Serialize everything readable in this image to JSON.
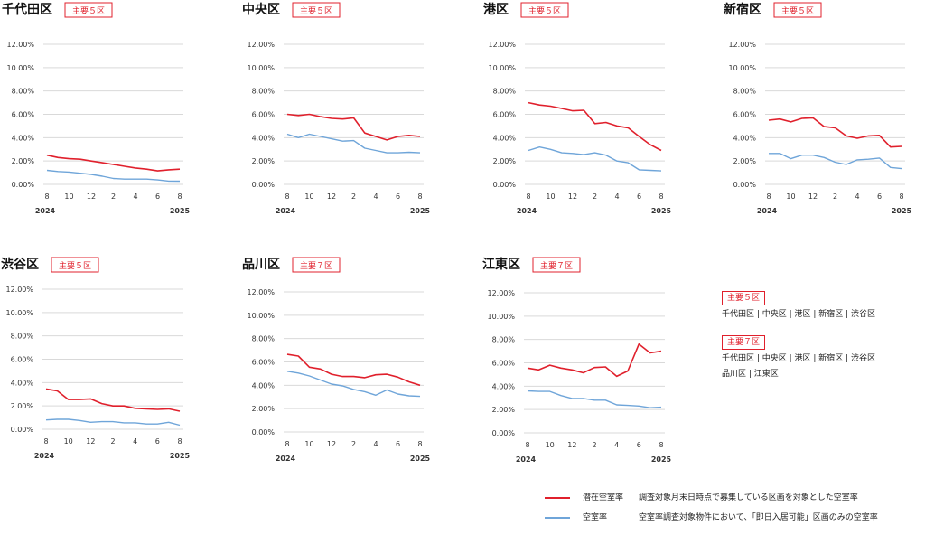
{
  "colors": {
    "latent": "#e0202c",
    "vacancy": "#6fa5d9",
    "grid": "#d9d9d9",
    "tick": "#333333",
    "badge": "#e0202c"
  },
  "legend": [
    {
      "key": "latent",
      "name": "潜在空室率",
      "description": "調査対象月末日時点で募集している区画を対象とした空室率"
    },
    {
      "key": "vacancy",
      "name": "空室率",
      "description": "空室率調査対象物件において、「即日入居可能」区画のみの空室率"
    }
  ],
  "info_boxes": [
    {
      "badge": "主要５区",
      "lines": [
        "千代田区 | 中央区 | 港区 | 新宿区 | 渋谷区"
      ]
    },
    {
      "badge": "主要７区",
      "lines": [
        "千代田区 | 中央区 | 港区 | 新宿区 | 渋谷区",
        "品川区 | 江東区"
      ]
    }
  ],
  "chart_data": [
    {
      "type": "line",
      "title": "千代田区",
      "badge": "主要５区",
      "x_ticks": [
        "8",
        "10",
        "12",
        "2",
        "4",
        "6",
        "8"
      ],
      "x_year_labels": [
        "2024",
        "2025"
      ],
      "y_ticks": [
        "0.00%",
        "2.00%",
        "4.00%",
        "6.00%",
        "8.00%",
        "10.00%",
        "12.00%"
      ],
      "ylim": [
        0,
        12
      ],
      "grid": true,
      "series": [
        {
          "name": "潜在空室率",
          "values": [
            2.5,
            2.3,
            2.2,
            2.15,
            2.0,
            1.85,
            1.7,
            1.55,
            1.4,
            1.3,
            1.15,
            1.25,
            1.3
          ]
        },
        {
          "name": "空室率",
          "values": [
            1.2,
            1.1,
            1.05,
            0.95,
            0.85,
            0.7,
            0.5,
            0.45,
            0.45,
            0.45,
            0.38,
            0.28,
            0.27
          ]
        }
      ]
    },
    {
      "type": "line",
      "title": "中央区",
      "badge": "主要５区",
      "x_ticks": [
        "8",
        "10",
        "12",
        "2",
        "4",
        "6",
        "8"
      ],
      "x_year_labels": [
        "2024",
        "2025"
      ],
      "y_ticks": [
        "0.00%",
        "2.00%",
        "4.00%",
        "6.00%",
        "8.00%",
        "10.00%",
        "12.00%"
      ],
      "ylim": [
        0,
        12
      ],
      "grid": true,
      "series": [
        {
          "name": "潜在空室率",
          "values": [
            6.0,
            5.9,
            6.0,
            5.8,
            5.65,
            5.6,
            5.7,
            4.4,
            4.1,
            3.8,
            4.1,
            4.2,
            4.1
          ]
        },
        {
          "name": "空室率",
          "values": [
            4.3,
            4.0,
            4.3,
            4.1,
            3.9,
            3.7,
            3.75,
            3.1,
            2.9,
            2.7,
            2.7,
            2.75,
            2.7
          ]
        }
      ]
    },
    {
      "type": "line",
      "title": "港区",
      "badge": "主要５区",
      "x_ticks": [
        "8",
        "10",
        "12",
        "2",
        "4",
        "6",
        "8"
      ],
      "x_year_labels": [
        "2024",
        "2025"
      ],
      "y_ticks": [
        "0.00%",
        "2.00%",
        "4.00%",
        "6.00%",
        "8.00%",
        "10.00%",
        "12.00%"
      ],
      "ylim": [
        0,
        12
      ],
      "grid": true,
      "series": [
        {
          "name": "潜在空室率",
          "values": [
            7.0,
            6.8,
            6.7,
            6.5,
            6.3,
            6.35,
            5.2,
            5.3,
            5.0,
            4.85,
            4.1,
            3.4,
            2.9
          ]
        },
        {
          "name": "空室率",
          "values": [
            2.9,
            3.2,
            3.0,
            2.7,
            2.65,
            2.55,
            2.7,
            2.5,
            2.0,
            1.85,
            1.25,
            1.2,
            1.15
          ]
        }
      ]
    },
    {
      "type": "line",
      "title": "新宿区",
      "badge": "主要５区",
      "x_ticks": [
        "8",
        "10",
        "12",
        "2",
        "4",
        "6",
        "8"
      ],
      "x_year_labels": [
        "2024",
        "2025"
      ],
      "y_ticks": [
        "0.00%",
        "2.00%",
        "4.00%",
        "6.00%",
        "8.00%",
        "10.00%",
        "12.00%"
      ],
      "ylim": [
        0,
        12
      ],
      "grid": true,
      "series": [
        {
          "name": "潜在空室率",
          "values": [
            5.5,
            5.6,
            5.35,
            5.65,
            5.7,
            4.95,
            4.85,
            4.15,
            3.95,
            4.15,
            4.2,
            3.2,
            3.25
          ]
        },
        {
          "name": "空室率",
          "values": [
            2.65,
            2.65,
            2.2,
            2.5,
            2.5,
            2.3,
            1.9,
            1.7,
            2.1,
            2.15,
            2.25,
            1.45,
            1.35
          ]
        }
      ]
    },
    {
      "type": "line",
      "title": "渋谷区",
      "badge": "主要５区",
      "x_ticks": [
        "8",
        "10",
        "12",
        "2",
        "4",
        "6",
        "8"
      ],
      "x_year_labels": [
        "2024",
        "2025"
      ],
      "y_ticks": [
        "0.00%",
        "2.00%",
        "4.00%",
        "6.00%",
        "8.00%",
        "10.00%",
        "12.00%"
      ],
      "ylim": [
        0,
        12
      ],
      "grid": true,
      "series": [
        {
          "name": "潜在空室率",
          "values": [
            3.45,
            3.3,
            2.55,
            2.55,
            2.6,
            2.2,
            2.0,
            2.0,
            1.8,
            1.75,
            1.7,
            1.75,
            1.55
          ]
        },
        {
          "name": "空室率",
          "values": [
            0.8,
            0.85,
            0.85,
            0.75,
            0.6,
            0.65,
            0.65,
            0.55,
            0.55,
            0.45,
            0.45,
            0.6,
            0.35
          ]
        }
      ]
    },
    {
      "type": "line",
      "title": "品川区",
      "badge": "主要７区",
      "x_ticks": [
        "8",
        "10",
        "12",
        "2",
        "4",
        "6",
        "8"
      ],
      "x_year_labels": [
        "2024",
        "2025"
      ],
      "y_ticks": [
        "0.00%",
        "2.00%",
        "4.00%",
        "6.00%",
        "8.00%",
        "10.00%",
        "12.00%"
      ],
      "ylim": [
        0,
        12
      ],
      "grid": true,
      "series": [
        {
          "name": "潜在空室率",
          "values": [
            6.65,
            6.5,
            5.55,
            5.4,
            4.95,
            4.75,
            4.75,
            4.65,
            4.9,
            4.95,
            4.7,
            4.3,
            4.0
          ]
        },
        {
          "name": "空室率",
          "values": [
            5.2,
            5.05,
            4.8,
            4.45,
            4.1,
            3.95,
            3.65,
            3.45,
            3.15,
            3.6,
            3.25,
            3.1,
            3.05
          ]
        }
      ]
    },
    {
      "type": "line",
      "title": "江東区",
      "badge": "主要７区",
      "x_ticks": [
        "8",
        "10",
        "12",
        "2",
        "4",
        "6",
        "8"
      ],
      "x_year_labels": [
        "2024",
        "2025"
      ],
      "y_ticks": [
        "0.00%",
        "2.00%",
        "4.00%",
        "6.00%",
        "8.00%",
        "10.00%",
        "12.00%"
      ],
      "ylim": [
        0,
        12
      ],
      "grid": true,
      "series": [
        {
          "name": "潜在空室率",
          "values": [
            5.55,
            5.4,
            5.8,
            5.55,
            5.4,
            5.15,
            5.6,
            5.65,
            4.85,
            5.3,
            7.6,
            6.85,
            7.0
          ]
        },
        {
          "name": "空室率",
          "values": [
            3.6,
            3.55,
            3.55,
            3.2,
            2.95,
            2.95,
            2.8,
            2.8,
            2.4,
            2.35,
            2.3,
            2.15,
            2.2
          ]
        }
      ]
    }
  ]
}
